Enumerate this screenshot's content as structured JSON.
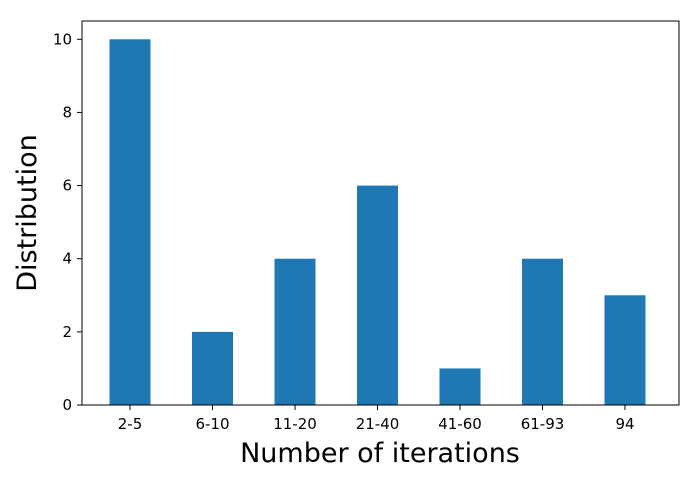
{
  "chart_data": {
    "type": "bar",
    "title": "",
    "xlabel": "Number of iterations",
    "ylabel": "Distribution",
    "categories": [
      "2-5",
      "6-10",
      "11-20",
      "21-40",
      "41-60",
      "61-93",
      "94"
    ],
    "values": [
      10,
      2,
      4,
      6,
      1,
      4,
      3
    ],
    "ylim": [
      0,
      10.5
    ],
    "yticks": [
      0,
      2,
      4,
      6,
      8,
      10
    ],
    "grid": false,
    "legend": null,
    "bar_color": "#1f77b4"
  }
}
